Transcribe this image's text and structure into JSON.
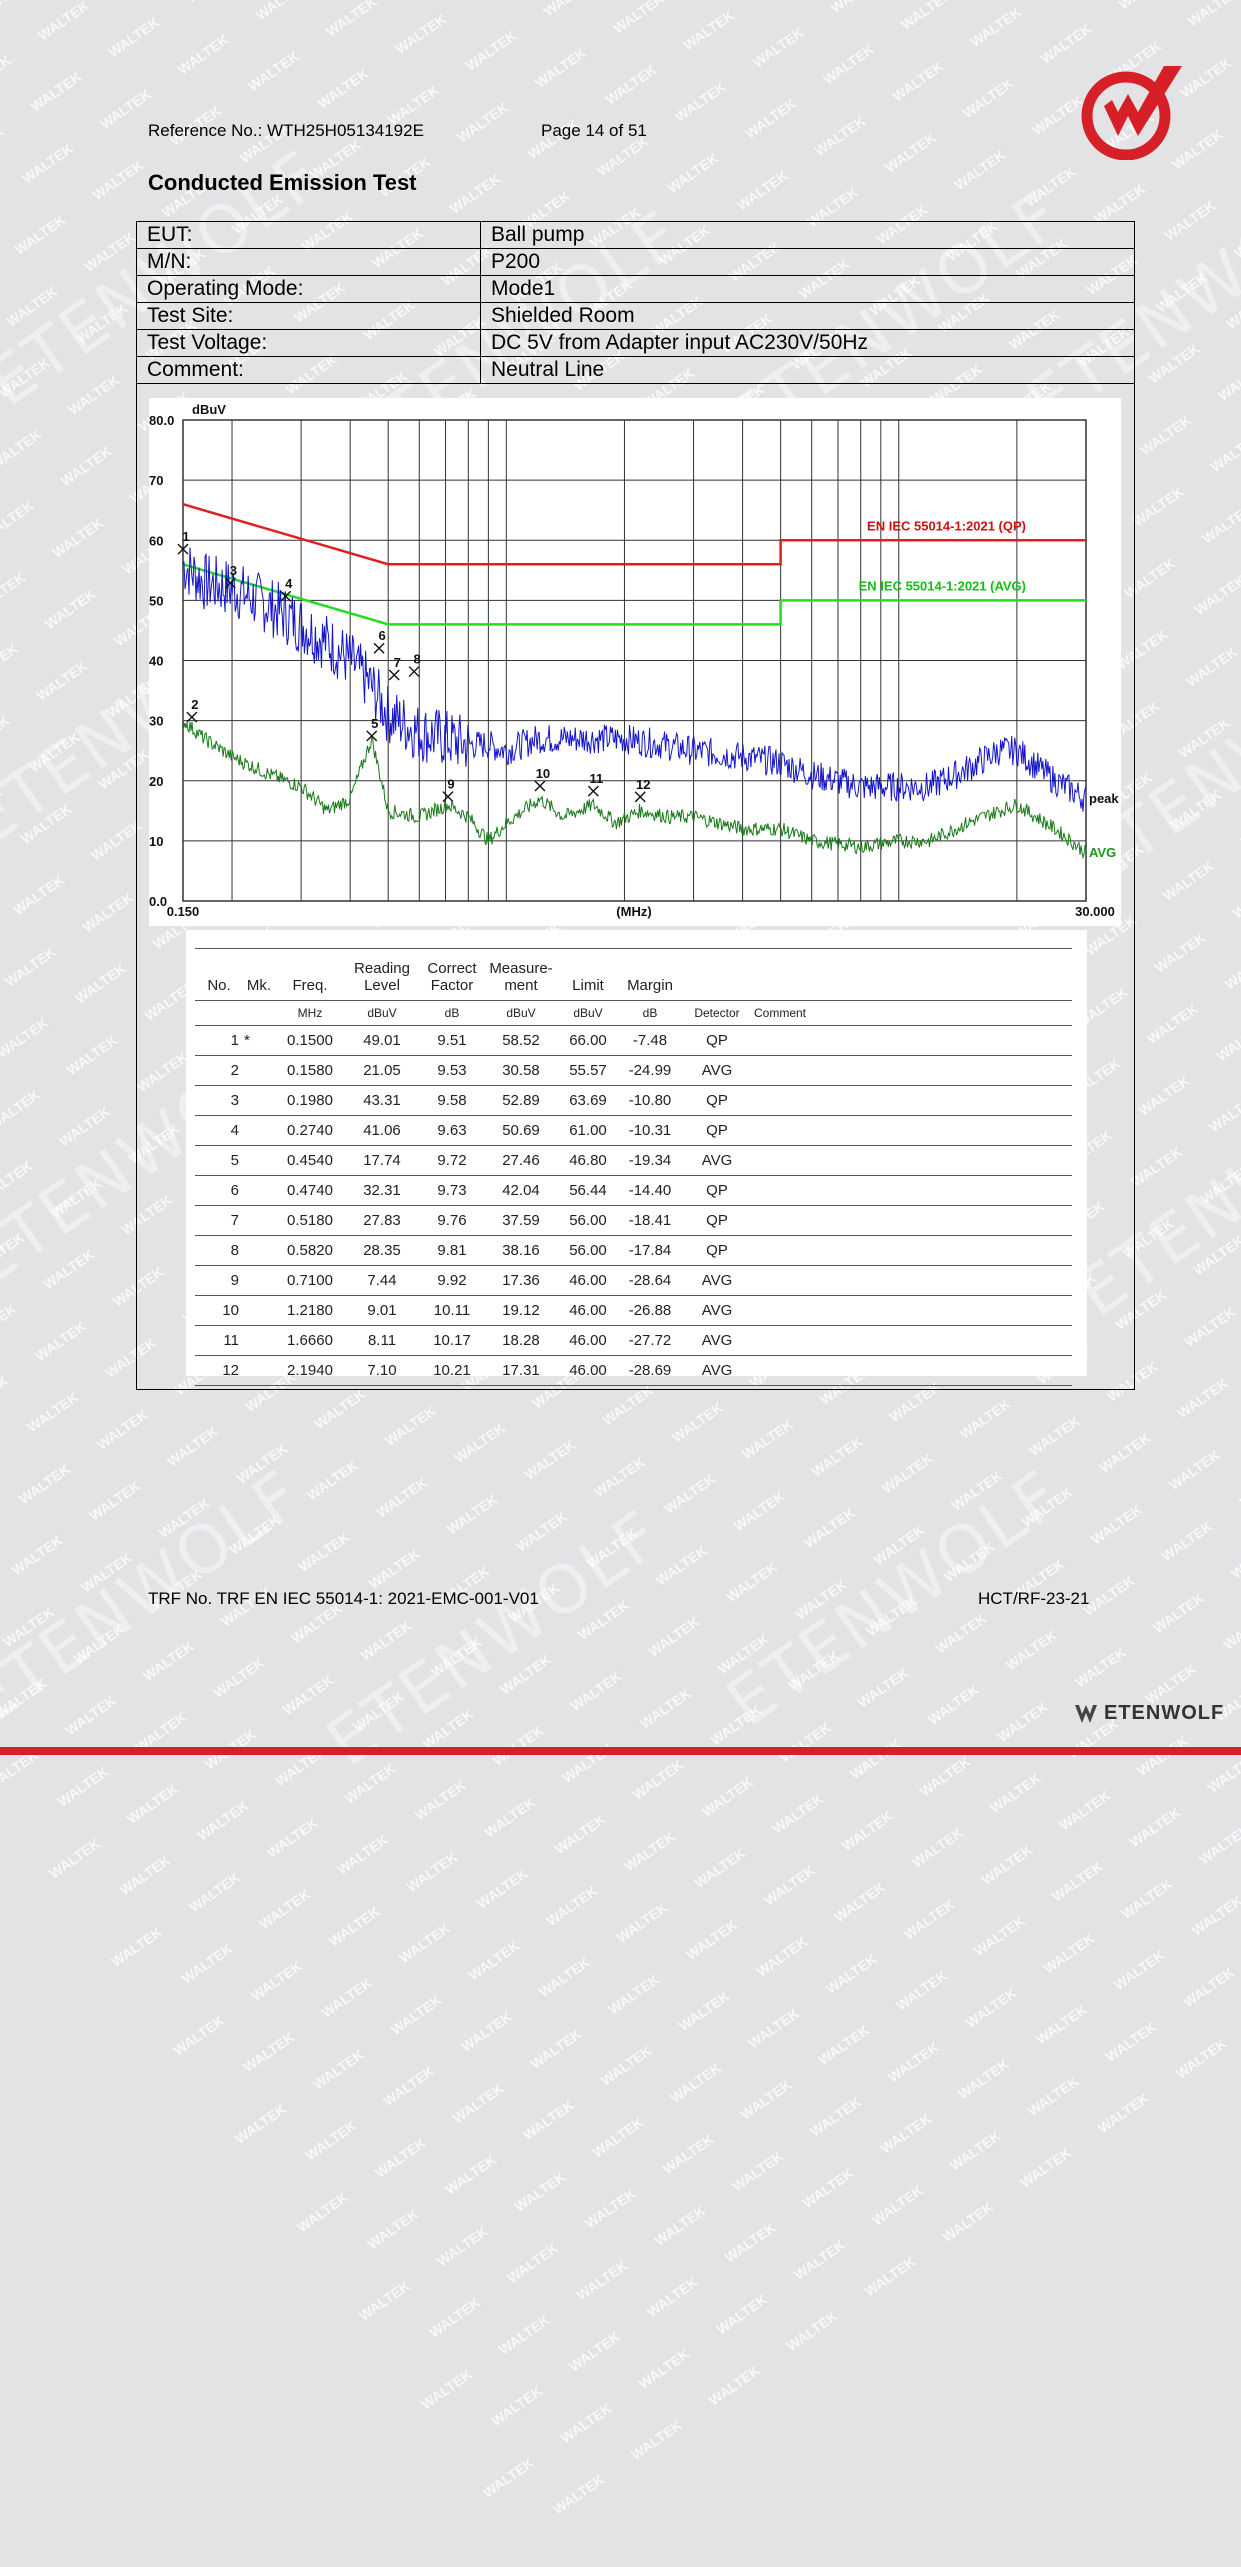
{
  "header": {
    "reference": "Reference No.: WTH25H05134192E",
    "page": "Page 14 of 51"
  },
  "watermark": {
    "small": "WALTEK",
    "large": "ETENWOLF"
  },
  "title": "Conducted Emission Test",
  "info": [
    {
      "label": "EUT:",
      "value": "Ball pump"
    },
    {
      "label": "M/N:",
      "value": "P200"
    },
    {
      "label": "Operating Mode:",
      "value": "Mode1"
    },
    {
      "label": "Test Site:",
      "value": "Shielded Room"
    },
    {
      "label": "Test Voltage:",
      "value": "DC 5V from Adapter input AC230V/50Hz"
    },
    {
      "label": "Comment:",
      "value": "Neutral Line"
    }
  ],
  "chart_data": {
    "type": "line",
    "xlabel": "(MHz)",
    "ylabel": "dBuV",
    "x_scale": "log",
    "xlim": [
      0.15,
      30
    ],
    "ylim": [
      0,
      80
    ],
    "x_tick_labels": [
      "0.150",
      "30.000"
    ],
    "y_tick_labels": [
      "0.0",
      "10",
      "20",
      "30",
      "40",
      "50",
      "60",
      "70",
      "80.0"
    ],
    "grid": true,
    "limits": [
      {
        "name": "EN IEC 55014-1:2021 (QP)",
        "color": "#e02020",
        "points": [
          [
            0.15,
            66
          ],
          [
            0.5,
            56
          ],
          [
            5,
            56
          ],
          [
            5,
            60
          ],
          [
            30,
            60
          ]
        ]
      },
      {
        "name": "EN IEC 55014-1:2021 (AVG)",
        "color": "#22dd22",
        "points": [
          [
            0.15,
            56
          ],
          [
            0.5,
            46
          ],
          [
            5,
            46
          ],
          [
            5,
            50
          ],
          [
            30,
            50
          ]
        ]
      }
    ],
    "series": [
      {
        "name": "peak",
        "color": "#1515cc",
        "points": [
          [
            0.15,
            56
          ],
          [
            0.17,
            53
          ],
          [
            0.2,
            52
          ],
          [
            0.25,
            49
          ],
          [
            0.3,
            46
          ],
          [
            0.35,
            43
          ],
          [
            0.4,
            40
          ],
          [
            0.45,
            36
          ],
          [
            0.5,
            31
          ],
          [
            0.6,
            28
          ],
          [
            0.7,
            27
          ],
          [
            0.8,
            26
          ],
          [
            0.9,
            26
          ],
          [
            1.0,
            25
          ],
          [
            1.2,
            27
          ],
          [
            1.5,
            27
          ],
          [
            2.0,
            27
          ],
          [
            2.5,
            26
          ],
          [
            3.0,
            25
          ],
          [
            4.0,
            24
          ],
          [
            5.0,
            23
          ],
          [
            6.0,
            21
          ],
          [
            8.0,
            19
          ],
          [
            10.0,
            19
          ],
          [
            12.0,
            19
          ],
          [
            15.0,
            22
          ],
          [
            18.0,
            25
          ],
          [
            20.0,
            25
          ],
          [
            25.0,
            20
          ],
          [
            30.0,
            17
          ]
        ]
      },
      {
        "name": "AVG",
        "color": "#1a7a1a",
        "points": [
          [
            0.15,
            30
          ],
          [
            0.17,
            27
          ],
          [
            0.2,
            24
          ],
          [
            0.25,
            21
          ],
          [
            0.3,
            19
          ],
          [
            0.35,
            15
          ],
          [
            0.4,
            17
          ],
          [
            0.454,
            27
          ],
          [
            0.5,
            15
          ],
          [
            0.6,
            14
          ],
          [
            0.71,
            16
          ],
          [
            0.8,
            14
          ],
          [
            0.9,
            10
          ],
          [
            1.0,
            13
          ],
          [
            1.218,
            17
          ],
          [
            1.4,
            14
          ],
          [
            1.666,
            16
          ],
          [
            1.9,
            13
          ],
          [
            2.194,
            15
          ],
          [
            2.6,
            14
          ],
          [
            3.0,
            14
          ],
          [
            4.0,
            12
          ],
          [
            5.0,
            12
          ],
          [
            6.0,
            10
          ],
          [
            8.0,
            9
          ],
          [
            10.0,
            10
          ],
          [
            12.0,
            10
          ],
          [
            15.0,
            13
          ],
          [
            18.0,
            15
          ],
          [
            20.0,
            16
          ],
          [
            25.0,
            12
          ],
          [
            30.0,
            8
          ]
        ]
      }
    ],
    "markers": [
      {
        "label": "1",
        "x": 0.15,
        "y": 58.52
      },
      {
        "label": "2",
        "x": 0.158,
        "y": 30.58
      },
      {
        "label": "3",
        "x": 0.198,
        "y": 52.89
      },
      {
        "label": "4",
        "x": 0.274,
        "y": 50.69
      },
      {
        "label": "5",
        "x": 0.454,
        "y": 27.46
      },
      {
        "label": "6",
        "x": 0.474,
        "y": 42.04
      },
      {
        "label": "7",
        "x": 0.518,
        "y": 37.59
      },
      {
        "label": "8",
        "x": 0.582,
        "y": 38.16
      },
      {
        "label": "9",
        "x": 0.71,
        "y": 17.36
      },
      {
        "label": "10",
        "x": 1.218,
        "y": 19.12
      },
      {
        "label": "11",
        "x": 1.666,
        "y": 18.28
      },
      {
        "label": "12",
        "x": 2.194,
        "y": 17.31
      }
    ]
  },
  "measurements": {
    "headers": [
      "No.",
      "Mk.",
      "Freq.",
      "Reading Level",
      "Correct Factor",
      "Measure- ment",
      "Limit",
      "Margin",
      "",
      ""
    ],
    "units": [
      "",
      "",
      "MHz",
      "dBuV",
      "dB",
      "dBuV",
      "dBuV",
      "dB",
      "Detector",
      "Comment"
    ],
    "rows": [
      [
        "1",
        "*",
        "0.1500",
        "49.01",
        "9.51",
        "58.52",
        "66.00",
        "-7.48",
        "QP",
        ""
      ],
      [
        "2",
        "",
        "0.1580",
        "21.05",
        "9.53",
        "30.58",
        "55.57",
        "-24.99",
        "AVG",
        ""
      ],
      [
        "3",
        "",
        "0.1980",
        "43.31",
        "9.58",
        "52.89",
        "63.69",
        "-10.80",
        "QP",
        ""
      ],
      [
        "4",
        "",
        "0.2740",
        "41.06",
        "9.63",
        "50.69",
        "61.00",
        "-10.31",
        "QP",
        ""
      ],
      [
        "5",
        "",
        "0.4540",
        "17.74",
        "9.72",
        "27.46",
        "46.80",
        "-19.34",
        "AVG",
        ""
      ],
      [
        "6",
        "",
        "0.4740",
        "32.31",
        "9.73",
        "42.04",
        "56.44",
        "-14.40",
        "QP",
        ""
      ],
      [
        "7",
        "",
        "0.5180",
        "27.83",
        "9.76",
        "37.59",
        "56.00",
        "-18.41",
        "QP",
        ""
      ],
      [
        "8",
        "",
        "0.5820",
        "28.35",
        "9.81",
        "38.16",
        "56.00",
        "-17.84",
        "QP",
        ""
      ],
      [
        "9",
        "",
        "0.7100",
        "7.44",
        "9.92",
        "17.36",
        "46.00",
        "-28.64",
        "AVG",
        ""
      ],
      [
        "10",
        "",
        "1.2180",
        "9.01",
        "10.11",
        "19.12",
        "46.00",
        "-26.88",
        "AVG",
        ""
      ],
      [
        "11",
        "",
        "1.6660",
        "8.11",
        "10.17",
        "18.28",
        "46.00",
        "-27.72",
        "AVG",
        ""
      ],
      [
        "12",
        "",
        "2.1940",
        "7.10",
        "10.21",
        "17.31",
        "46.00",
        "-28.69",
        "AVG",
        ""
      ]
    ]
  },
  "footer": {
    "trf": "TRF No. TRF EN IEC 55014-1: 2021-EMC-001-V01",
    "code": "HCT/RF-23-21",
    "brand": "ETENWOLF"
  }
}
